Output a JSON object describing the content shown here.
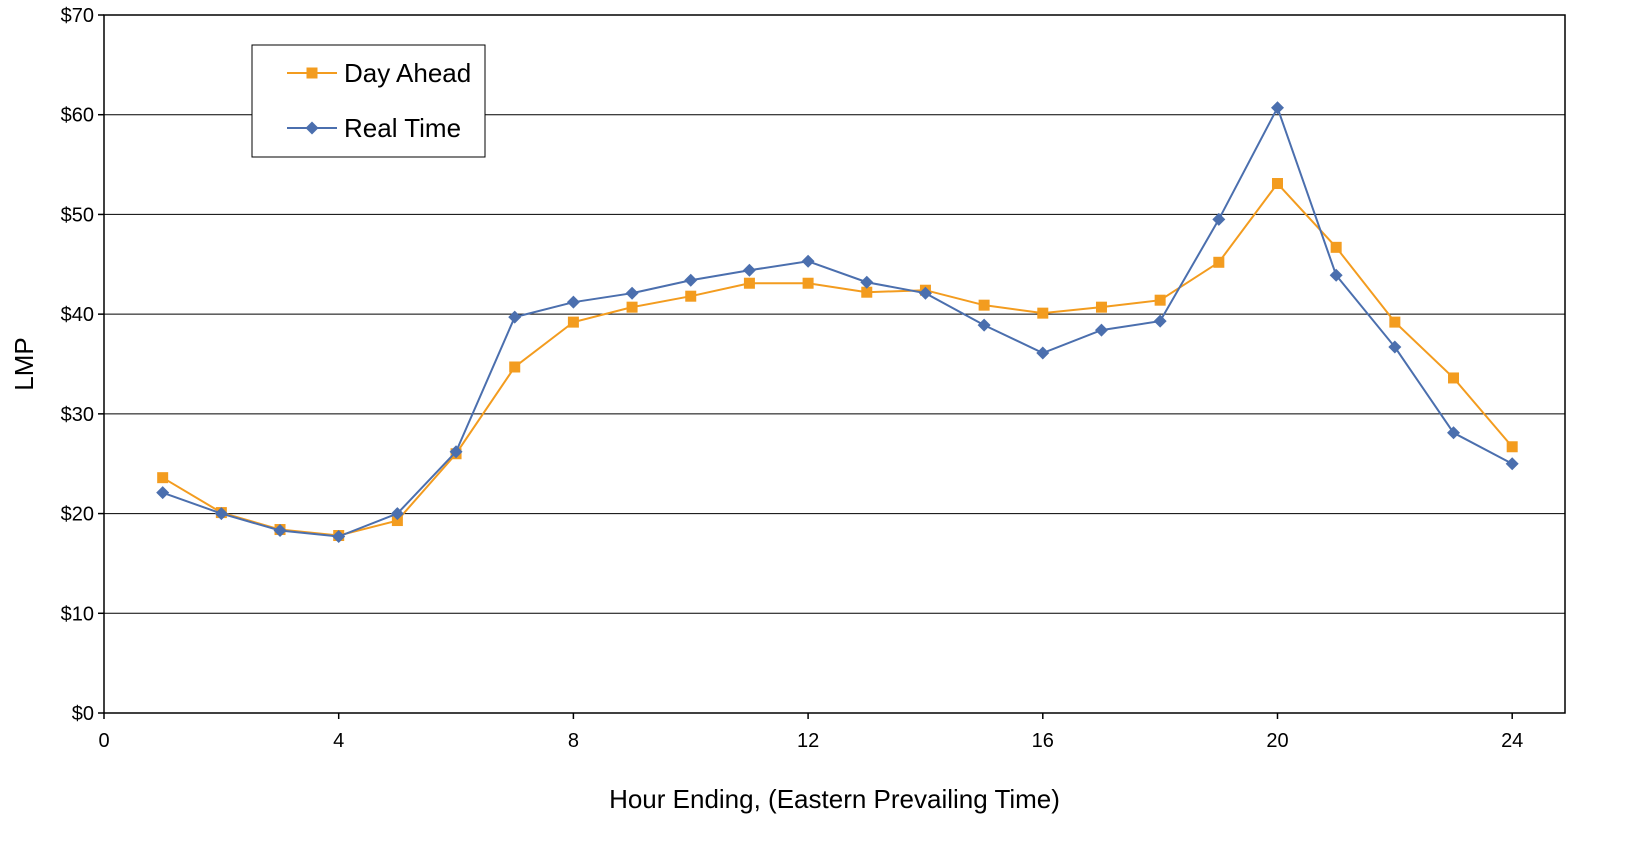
{
  "chart_data": {
    "type": "line",
    "title": "",
    "xlabel": "Hour Ending, (Eastern Prevailing Time)",
    "ylabel": "LMP",
    "xlim": [
      0,
      24.9
    ],
    "ylim": [
      0,
      70
    ],
    "x_ticks": [
      0,
      4,
      8,
      12,
      16,
      20,
      24
    ],
    "y_ticks": [
      0,
      10,
      20,
      30,
      40,
      50,
      60,
      70
    ],
    "y_tick_labels": [
      "$0",
      "$10",
      "$20",
      "$30",
      "$40",
      "$50",
      "$60",
      "$70"
    ],
    "grid": "horizontal",
    "legend_position": "top-left",
    "x": [
      1,
      2,
      3,
      4,
      5,
      6,
      7,
      8,
      9,
      10,
      11,
      12,
      13,
      14,
      15,
      16,
      17,
      18,
      19,
      20,
      21,
      22,
      23,
      24
    ],
    "series": [
      {
        "name": "Day Ahead",
        "color": "#f39c1f",
        "marker": "square",
        "values": [
          23.6,
          20.1,
          18.4,
          17.8,
          19.3,
          26.0,
          34.7,
          39.2,
          40.7,
          41.8,
          43.1,
          43.1,
          42.2,
          42.4,
          40.9,
          40.1,
          40.7,
          41.4,
          45.2,
          53.1,
          46.7,
          39.2,
          33.6,
          26.7
        ]
      },
      {
        "name": "Real Time",
        "color": "#4b6fae",
        "marker": "diamond",
        "values": [
          22.1,
          20.0,
          18.3,
          17.7,
          20.0,
          26.2,
          39.7,
          41.2,
          42.1,
          43.4,
          44.4,
          45.3,
          43.2,
          42.1,
          38.9,
          36.1,
          38.4,
          39.3,
          49.5,
          60.7,
          43.9,
          36.7,
          28.1,
          25.0
        ]
      }
    ]
  }
}
